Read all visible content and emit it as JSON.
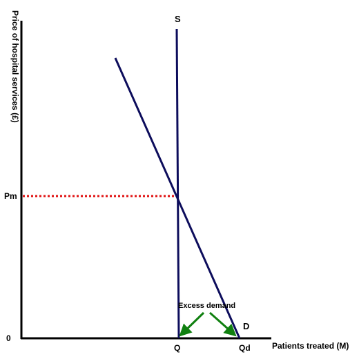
{
  "diagram": {
    "y_axis_title": "Price of hospital services  (£)",
    "x_axis_title": "Patients treated (M)",
    "origin_label": "0",
    "price_label": "Pm",
    "supply_label": "S",
    "demand_label": "D",
    "quantity_supplied_label": "Q",
    "quantity_demanded_label": "Qd",
    "annotation": "Excess demand"
  },
  "colors": {
    "axes": "#000000",
    "curves": "#0d0d5c",
    "price_line": "#e01010",
    "arrows": "#108010"
  }
}
